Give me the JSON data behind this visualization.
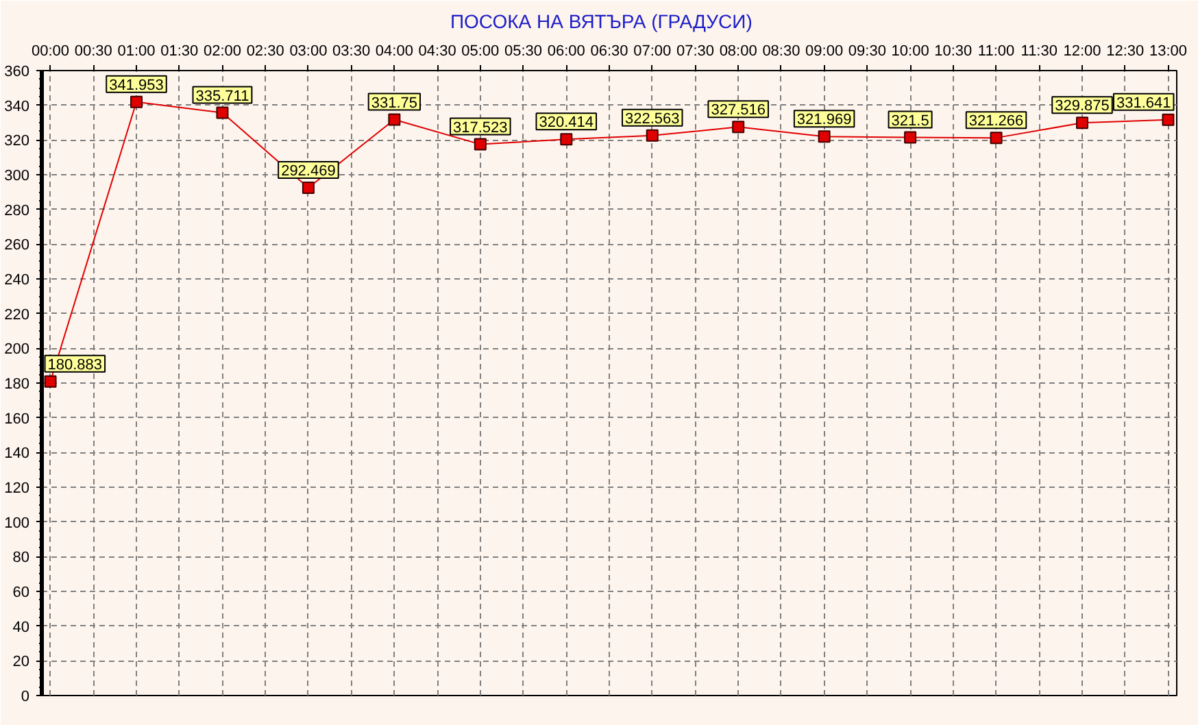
{
  "chart_data": {
    "type": "line",
    "title": "ПОСОКА НА ВЯТЪРА    (ГРАДУСИ)",
    "x": [
      0,
      1,
      2,
      3,
      4,
      5,
      6,
      7,
      8,
      9,
      10,
      11,
      12,
      13
    ],
    "series": [
      {
        "color": "#e00000",
        "values": [
          180.883,
          341.953,
          335.711,
          292.469,
          331.75,
          317.523,
          320.414,
          322.563,
          327.516,
          321.969,
          321.5,
          321.266,
          329.875,
          331.641
        ]
      }
    ],
    "xlim": [
      -0.1,
      13.1
    ],
    "xticks": [
      {
        "value": 0,
        "label": "00:00"
      },
      {
        "value": 0.5,
        "label": "00:30"
      },
      {
        "value": 1,
        "label": "01:00"
      },
      {
        "value": 1.5,
        "label": "01:30"
      },
      {
        "value": 2,
        "label": "02:00"
      },
      {
        "value": 2.5,
        "label": "02:30"
      },
      {
        "value": 3,
        "label": "03:00"
      },
      {
        "value": 3.5,
        "label": "03:30"
      },
      {
        "value": 4,
        "label": "04:00"
      },
      {
        "value": 4.5,
        "label": "04:30"
      },
      {
        "value": 5,
        "label": "05:00"
      },
      {
        "value": 5.5,
        "label": "05:30"
      },
      {
        "value": 6,
        "label": "06:00"
      },
      {
        "value": 6.5,
        "label": "06:30"
      },
      {
        "value": 7,
        "label": "07:00"
      },
      {
        "value": 7.5,
        "label": "07:30"
      },
      {
        "value": 8,
        "label": "08:00"
      },
      {
        "value": 8.5,
        "label": "08:30"
      },
      {
        "value": 9,
        "label": "09:00"
      },
      {
        "value": 9.5,
        "label": "09:30"
      },
      {
        "value": 10,
        "label": "10:00"
      },
      {
        "value": 10.5,
        "label": "10:30"
      },
      {
        "value": 11,
        "label": "11:00"
      },
      {
        "value": 11.5,
        "label": "11:30"
      },
      {
        "value": 12,
        "label": "12:00"
      },
      {
        "value": 12.5,
        "label": "12:30"
      },
      {
        "value": 13,
        "label": "13:00"
      }
    ],
    "ylim": [
      0,
      360
    ],
    "yticks": [
      0,
      20,
      40,
      60,
      80,
      100,
      120,
      140,
      160,
      180,
      200,
      220,
      240,
      260,
      280,
      300,
      320,
      340,
      360
    ],
    "grid": true,
    "marker": "square",
    "line_style": "solid",
    "data_labels": true
  }
}
